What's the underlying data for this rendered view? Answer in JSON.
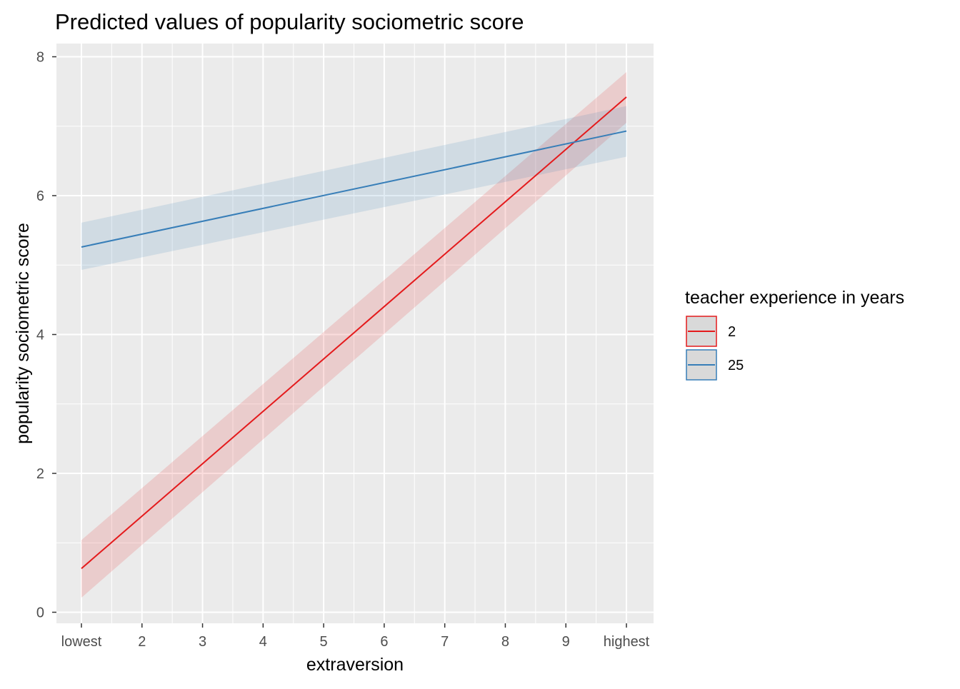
{
  "chart_data": {
    "type": "line",
    "title": "Predicted values of popularity sociometric score",
    "xlabel": "extraversion",
    "ylabel": "popularity sociometric score",
    "x": [
      1,
      10
    ],
    "xlim": [
      1,
      10
    ],
    "ylim": [
      0,
      8
    ],
    "x_ticks": [
      {
        "value": 1,
        "label": "lowest"
      },
      {
        "value": 2,
        "label": "2"
      },
      {
        "value": 3,
        "label": "3"
      },
      {
        "value": 4,
        "label": "4"
      },
      {
        "value": 5,
        "label": "5"
      },
      {
        "value": 6,
        "label": "6"
      },
      {
        "value": 7,
        "label": "7"
      },
      {
        "value": 8,
        "label": "8"
      },
      {
        "value": 9,
        "label": "9"
      },
      {
        "value": 10,
        "label": "highest"
      }
    ],
    "y_ticks": [
      0,
      2,
      4,
      6,
      8
    ],
    "grid": true,
    "legend": {
      "title": "teacher experience in years",
      "placement": "right"
    },
    "series": [
      {
        "name": "2",
        "color": "#e41a1c",
        "values": [
          0.63,
          7.42
        ],
        "ci_low": [
          0.21,
          7.05
        ],
        "ci_high": [
          1.04,
          7.78
        ]
      },
      {
        "name": "25",
        "color": "#377eb8",
        "values": [
          5.26,
          6.93
        ],
        "ci_low": [
          4.93,
          6.56
        ],
        "ci_high": [
          5.61,
          7.29
        ]
      }
    ]
  }
}
